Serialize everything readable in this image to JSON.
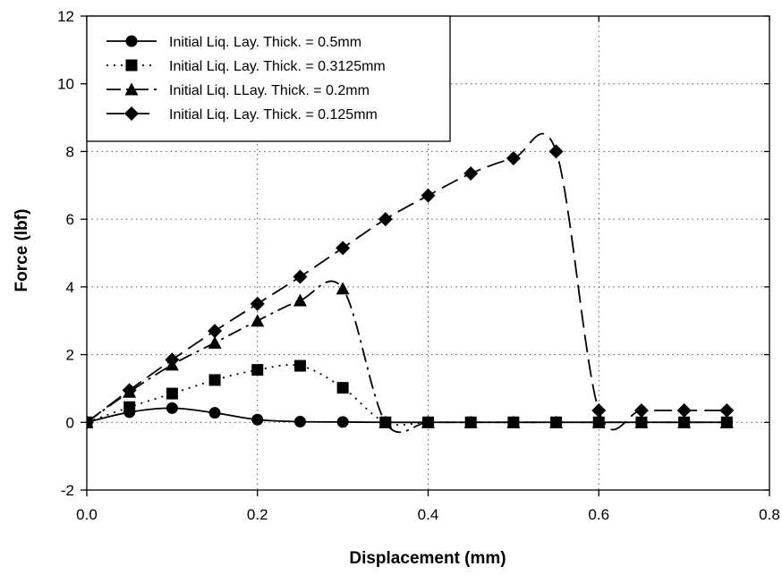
{
  "chart_data": {
    "type": "line",
    "title": "",
    "xlabel": "Displacement (mm)",
    "ylabel": "Force (lbf)",
    "xlim": [
      0.0,
      0.8
    ],
    "ylim": [
      -2,
      12
    ],
    "x_ticks": [
      "0.0",
      "0.2",
      "0.4",
      "0.6",
      "0.8"
    ],
    "y_ticks": [
      "-2",
      "0",
      "2",
      "4",
      "6",
      "8",
      "10",
      "12"
    ],
    "grid": "dotted",
    "legend_position": "top-left",
    "series": [
      {
        "name": "Initial Liq. Lay. Thick. = 0.5mm",
        "marker": "circle",
        "line_style": "solid",
        "color": "#000000",
        "x": [
          0.0,
          0.05,
          0.1,
          0.15,
          0.2,
          0.25,
          0.3,
          0.35,
          0.4,
          0.45,
          0.5,
          0.55,
          0.6,
          0.65,
          0.7,
          0.75
        ],
        "y": [
          0.0,
          0.3,
          0.42,
          0.28,
          0.08,
          0.02,
          0.01,
          0.0,
          0.0,
          0.0,
          0.0,
          0.0,
          0.0,
          0.0,
          0.0,
          0.0
        ]
      },
      {
        "name": "Initial Liq. Lay. Thick. = 0.3125mm",
        "marker": "square",
        "line_style": "dotted",
        "color": "#000000",
        "x": [
          0.0,
          0.05,
          0.1,
          0.15,
          0.2,
          0.25,
          0.3,
          0.35,
          0.4,
          0.45,
          0.5,
          0.55,
          0.6,
          0.65,
          0.7,
          0.75
        ],
        "y": [
          0.0,
          0.45,
          0.85,
          1.25,
          1.55,
          1.67,
          1.02,
          0.0,
          0.0,
          0.0,
          0.0,
          0.0,
          0.0,
          0.0,
          0.0,
          0.0
        ]
      },
      {
        "name": "Initial Liq. LLay. Thick. = 0.2mm",
        "marker": "triangle",
        "line_style": "dash-dot",
        "color": "#000000",
        "x": [
          0.0,
          0.05,
          0.1,
          0.15,
          0.2,
          0.25,
          0.3,
          0.35,
          0.4,
          0.45,
          0.5,
          0.55,
          0.6,
          0.65,
          0.7,
          0.75
        ],
        "y": [
          0.0,
          0.9,
          1.7,
          2.35,
          3.0,
          3.6,
          3.95,
          0.0,
          0.0,
          0.0,
          0.0,
          0.0,
          0.0,
          0.0,
          0.0,
          0.0
        ]
      },
      {
        "name": "Initial Liq. Lay. Thick. = 0.125mm",
        "marker": "diamond",
        "line_style": "dashed",
        "color": "#000000",
        "x": [
          0.0,
          0.05,
          0.1,
          0.15,
          0.2,
          0.25,
          0.3,
          0.35,
          0.4,
          0.45,
          0.5,
          0.55,
          0.6,
          0.65,
          0.7,
          0.75
        ],
        "y": [
          0.0,
          0.95,
          1.85,
          2.7,
          3.5,
          4.3,
          5.15,
          6.0,
          6.7,
          7.35,
          7.8,
          8.0,
          0.35,
          0.35,
          0.35,
          0.35
        ]
      }
    ]
  }
}
